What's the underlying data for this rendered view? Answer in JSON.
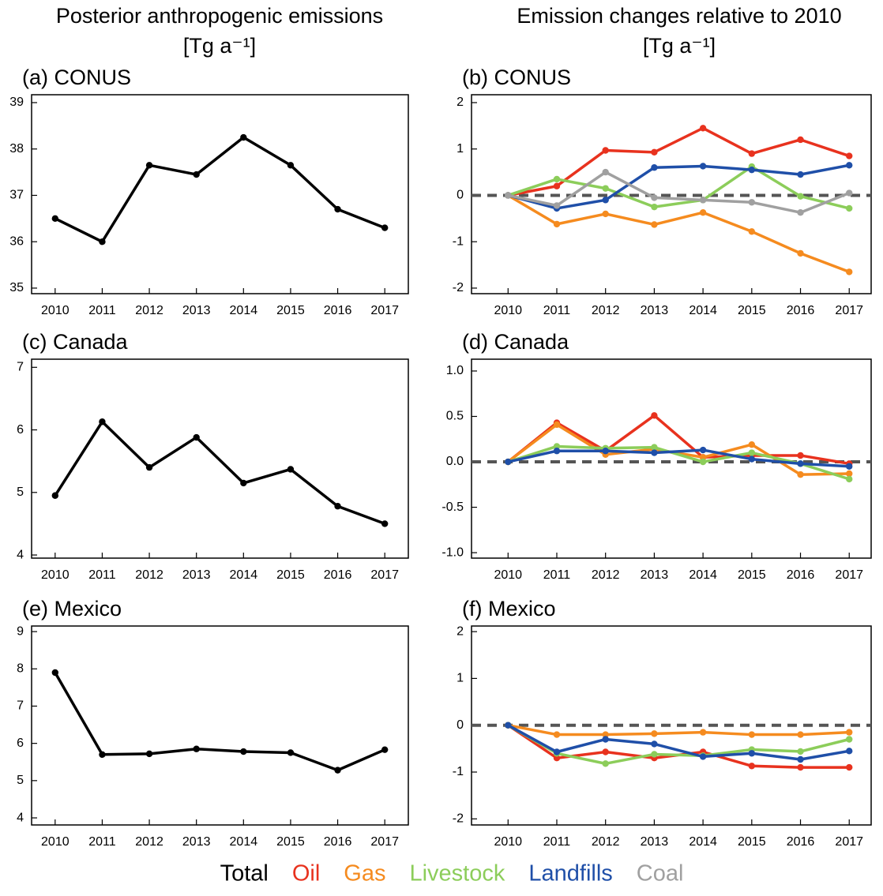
{
  "columns": [
    {
      "title": "Posterior anthropogenic emissions",
      "unit": "[Tg a⁻¹]"
    },
    {
      "title": "Emission changes relative to 2010",
      "unit": "[Tg a⁻¹]"
    }
  ],
  "chart_data": [
    {
      "type": "line",
      "title": "(a) CONUS",
      "x": [
        2010,
        2011,
        2012,
        2013,
        2014,
        2015,
        2016,
        2017
      ],
      "xlim": [
        2009.5,
        2017.5
      ],
      "xticks": [
        2010,
        2011,
        2012,
        2013,
        2014,
        2015,
        2016,
        2017
      ],
      "ylim": [
        34.88,
        39.17
      ],
      "yticks": [
        35,
        36,
        37,
        38,
        39
      ],
      "series": [
        {
          "name": "Total",
          "color": "#000000",
          "values": [
            36.5,
            36.0,
            37.65,
            37.45,
            38.25,
            37.65,
            36.7,
            36.3
          ]
        }
      ]
    },
    {
      "type": "line",
      "title": "(b) CONUS",
      "zero_line": true,
      "x": [
        2010,
        2011,
        2012,
        2013,
        2014,
        2015,
        2016,
        2017
      ],
      "xlim": [
        2009.25,
        2017.45
      ],
      "xticks": [
        2010,
        2011,
        2012,
        2013,
        2014,
        2015,
        2016,
        2017
      ],
      "ylim": [
        -2.12,
        2.17
      ],
      "yticks": [
        -2,
        -1,
        0,
        1,
        2
      ],
      "series": [
        {
          "name": "Oil",
          "color": "#e8321e",
          "values": [
            0,
            0.2,
            0.97,
            0.93,
            1.45,
            0.9,
            1.2,
            0.85
          ]
        },
        {
          "name": "Gas",
          "color": "#f58b1f",
          "values": [
            0,
            -0.62,
            -0.4,
            -0.63,
            -0.37,
            -0.78,
            -1.25,
            -1.65
          ]
        },
        {
          "name": "Livestock",
          "color": "#8ccd5a",
          "values": [
            0,
            0.35,
            0.15,
            -0.25,
            -0.1,
            0.62,
            -0.02,
            -0.28
          ]
        },
        {
          "name": "Landfills",
          "color": "#1f4fa8",
          "values": [
            0,
            -0.28,
            -0.1,
            0.6,
            0.63,
            0.55,
            0.45,
            0.65
          ]
        },
        {
          "name": "Coal",
          "color": "#a0a0a0",
          "values": [
            0,
            -0.22,
            0.5,
            -0.05,
            -0.1,
            -0.15,
            -0.37,
            0.05
          ]
        }
      ]
    },
    {
      "type": "line",
      "title": "(c) Canada",
      "x": [
        2010,
        2011,
        2012,
        2013,
        2014,
        2015,
        2016,
        2017
      ],
      "xlim": [
        2009.5,
        2017.5
      ],
      "xticks": [
        2010,
        2011,
        2012,
        2013,
        2014,
        2015,
        2016,
        2017
      ],
      "ylim": [
        3.95,
        7.13
      ],
      "yticks": [
        4,
        5,
        6,
        7
      ],
      "series": [
        {
          "color": "#000000",
          "values": [
            4.95,
            6.13,
            5.4,
            5.88,
            5.15,
            5.37,
            4.78,
            4.5
          ]
        }
      ]
    },
    {
      "type": "line",
      "title": "(d) Canada",
      "zero_line": true,
      "x": [
        2010,
        2011,
        2012,
        2013,
        2014,
        2015,
        2016,
        2017
      ],
      "xlim": [
        2009.25,
        2017.45
      ],
      "xticks": [
        2010,
        2011,
        2012,
        2013,
        2014,
        2015,
        2016,
        2017
      ],
      "ylim": [
        -1.06,
        1.13
      ],
      "yticks": [
        {
          "value": -1,
          "label": "-1.0"
        },
        -0.5,
        {
          "value": 0,
          "label": "0.0"
        },
        0.5,
        {
          "value": 1,
          "label": "1.0"
        }
      ],
      "series": [
        {
          "color": "#e8321e",
          "values": [
            0,
            0.43,
            0.12,
            0.51,
            0.05,
            0.07,
            0.07,
            -0.02
          ]
        },
        {
          "color": "#f58b1f",
          "values": [
            0,
            0.41,
            0.08,
            0.14,
            0.05,
            0.19,
            -0.14,
            -0.13
          ]
        },
        {
          "color": "#8ccd5a",
          "values": [
            0,
            0.17,
            0.15,
            0.16,
            0.0,
            0.1,
            -0.02,
            -0.19
          ]
        },
        {
          "color": "#1f4fa8",
          "values": [
            0,
            0.12,
            0.12,
            0.1,
            0.13,
            0.03,
            -0.02,
            -0.05
          ]
        }
      ]
    },
    {
      "type": "line",
      "title": "(e) Mexico",
      "x": [
        2010,
        2011,
        2012,
        2013,
        2014,
        2015,
        2016,
        2017
      ],
      "xlim": [
        2009.5,
        2017.5
      ],
      "xticks": [
        2010,
        2011,
        2012,
        2013,
        2014,
        2015,
        2016,
        2017
      ],
      "ylim": [
        3.81,
        9.15
      ],
      "yticks": [
        4,
        5,
        6,
        7,
        8,
        9
      ],
      "series": [
        {
          "color": "#000000",
          "values": [
            7.9,
            5.7,
            5.72,
            5.85,
            5.78,
            5.75,
            5.28,
            5.83
          ]
        }
      ]
    },
    {
      "type": "line",
      "title": "(f) Mexico",
      "zero_line": true,
      "x": [
        2010,
        2011,
        2012,
        2013,
        2014,
        2015,
        2016,
        2017
      ],
      "xlim": [
        2009.25,
        2017.45
      ],
      "xticks": [
        2010,
        2011,
        2012,
        2013,
        2014,
        2015,
        2016,
        2017
      ],
      "ylim": [
        -2.13,
        2.12
      ],
      "yticks": [
        -2,
        -1,
        0,
        1,
        2
      ],
      "series": [
        {
          "color": "#e8321e",
          "values": [
            0,
            -0.7,
            -0.57,
            -0.7,
            -0.57,
            -0.87,
            -0.9,
            -0.9
          ]
        },
        {
          "color": "#f58b1f",
          "values": [
            0,
            -0.2,
            -0.2,
            -0.18,
            -0.15,
            -0.2,
            -0.2,
            -0.15
          ]
        },
        {
          "color": "#8ccd5a",
          "values": [
            0,
            -0.6,
            -0.82,
            -0.62,
            -0.65,
            -0.52,
            -0.56,
            -0.3
          ]
        },
        {
          "color": "#1f4fa8",
          "values": [
            0,
            -0.57,
            -0.3,
            -0.4,
            -0.67,
            -0.6,
            -0.73,
            -0.55
          ]
        }
      ]
    }
  ]
}
